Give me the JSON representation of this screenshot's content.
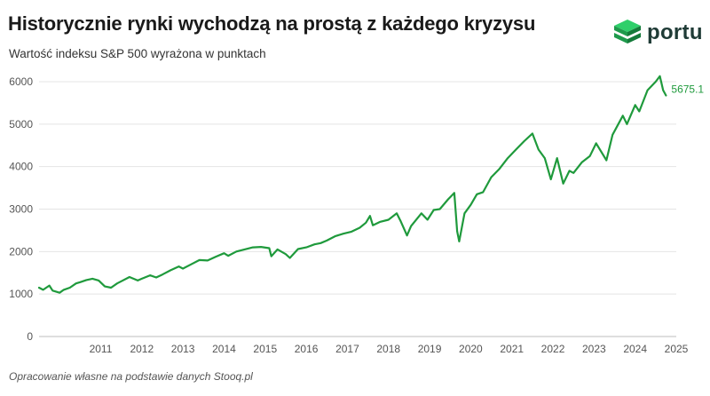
{
  "header": {
    "title": "Historycznie rynki wychodzą na prostą z każdego kryzysu",
    "subtitle": "Wartość indeksu S&P 500 wyrażona w punktach"
  },
  "brand": {
    "logo_text": "portu",
    "logo_icon": "stacked-layers-icon"
  },
  "footer": {
    "source": "Opracowanie własne na podstawie danych Stooq.pl"
  },
  "colors": {
    "line": "#1f9a3c",
    "grid": "#e4e4e4",
    "text": "#555555"
  },
  "chart_data": {
    "type": "line",
    "title": "Historycznie rynki wychodzą na prostą z każdego kryzysu",
    "subtitle": "Wartość indeksu S&P 500 wyrażona w punktach",
    "xlabel": "",
    "ylabel": "",
    "ylim": [
      0,
      6000
    ],
    "xlim": [
      2010.0,
      2025.5
    ],
    "y_ticks": [
      0,
      1000,
      2000,
      3000,
      4000,
      5000,
      6000
    ],
    "x_ticks": [
      "2011",
      "2012",
      "2013",
      "2014",
      "2015",
      "2016",
      "2017",
      "2018",
      "2019",
      "2020",
      "2021",
      "2022",
      "2023",
      "2024",
      "2025"
    ],
    "grid": true,
    "last_value_label": "5675.1",
    "series": [
      {
        "name": "",
        "points": [
          [
            2010.0,
            1150
          ],
          [
            2010.1,
            1100
          ],
          [
            2010.25,
            1200
          ],
          [
            2010.33,
            1080
          ],
          [
            2010.5,
            1030
          ],
          [
            2010.6,
            1100
          ],
          [
            2010.75,
            1150
          ],
          [
            2010.9,
            1250
          ],
          [
            2011.0,
            1280
          ],
          [
            2011.15,
            1330
          ],
          [
            2011.3,
            1360
          ],
          [
            2011.45,
            1320
          ],
          [
            2011.6,
            1180
          ],
          [
            2011.75,
            1150
          ],
          [
            2011.9,
            1250
          ],
          [
            2012.0,
            1300
          ],
          [
            2012.2,
            1400
          ],
          [
            2012.4,
            1320
          ],
          [
            2012.5,
            1360
          ],
          [
            2012.7,
            1440
          ],
          [
            2012.85,
            1390
          ],
          [
            2013.0,
            1460
          ],
          [
            2013.2,
            1560
          ],
          [
            2013.4,
            1650
          ],
          [
            2013.5,
            1600
          ],
          [
            2013.7,
            1700
          ],
          [
            2013.9,
            1800
          ],
          [
            2014.1,
            1790
          ],
          [
            2014.3,
            1880
          ],
          [
            2014.5,
            1960
          ],
          [
            2014.6,
            1900
          ],
          [
            2014.8,
            2000
          ],
          [
            2015.0,
            2050
          ],
          [
            2015.2,
            2100
          ],
          [
            2015.4,
            2110
          ],
          [
            2015.6,
            2080
          ],
          [
            2015.65,
            1890
          ],
          [
            2015.8,
            2050
          ],
          [
            2016.0,
            1940
          ],
          [
            2016.1,
            1850
          ],
          [
            2016.3,
            2060
          ],
          [
            2016.5,
            2100
          ],
          [
            2016.7,
            2170
          ],
          [
            2016.85,
            2200
          ],
          [
            2017.0,
            2260
          ],
          [
            2017.2,
            2360
          ],
          [
            2017.4,
            2420
          ],
          [
            2017.6,
            2470
          ],
          [
            2017.8,
            2560
          ],
          [
            2017.95,
            2680
          ],
          [
            2018.05,
            2840
          ],
          [
            2018.12,
            2620
          ],
          [
            2018.3,
            2700
          ],
          [
            2018.5,
            2750
          ],
          [
            2018.7,
            2900
          ],
          [
            2018.8,
            2710
          ],
          [
            2018.95,
            2380
          ],
          [
            2019.05,
            2600
          ],
          [
            2019.3,
            2900
          ],
          [
            2019.45,
            2750
          ],
          [
            2019.6,
            2980
          ],
          [
            2019.75,
            3000
          ],
          [
            2019.95,
            3230
          ],
          [
            2020.1,
            3380
          ],
          [
            2020.17,
            2480
          ],
          [
            2020.22,
            2240
          ],
          [
            2020.35,
            2900
          ],
          [
            2020.5,
            3100
          ],
          [
            2020.65,
            3350
          ],
          [
            2020.8,
            3400
          ],
          [
            2021.0,
            3750
          ],
          [
            2021.2,
            3950
          ],
          [
            2021.4,
            4200
          ],
          [
            2021.6,
            4400
          ],
          [
            2021.8,
            4600
          ],
          [
            2022.0,
            4780
          ],
          [
            2022.15,
            4400
          ],
          [
            2022.3,
            4200
          ],
          [
            2022.45,
            3700
          ],
          [
            2022.6,
            4200
          ],
          [
            2022.75,
            3600
          ],
          [
            2022.9,
            3900
          ],
          [
            2023.0,
            3850
          ],
          [
            2023.2,
            4100
          ],
          [
            2023.4,
            4250
          ],
          [
            2023.55,
            4550
          ],
          [
            2023.8,
            4150
          ],
          [
            2023.95,
            4750
          ],
          [
            2024.2,
            5200
          ],
          [
            2024.3,
            5000
          ],
          [
            2024.5,
            5450
          ],
          [
            2024.6,
            5300
          ],
          [
            2024.8,
            5800
          ],
          [
            2025.0,
            6000
          ],
          [
            2025.1,
            6130
          ],
          [
            2025.18,
            5800
          ],
          [
            2025.25,
            5675
          ]
        ]
      }
    ]
  }
}
